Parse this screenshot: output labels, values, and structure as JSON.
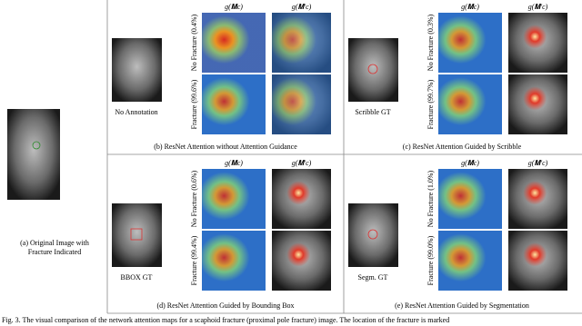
{
  "figure": {
    "original": {
      "caption": [
        "(a) Original Image with",
        "Fracture Indicated"
      ]
    },
    "panels": [
      {
        "caption": "(b) ResNet Attention without Attention Guidance",
        "annotation": "No Annotation",
        "headers": [
          "g(𝐌c)",
          "g(𝐌′c)"
        ],
        "rows": [
          "No Fracture (0.4%)",
          "Fracture (99.6%)"
        ]
      },
      {
        "caption": "(c) ResNet Attention Guided by Scribble",
        "annotation": "Scribble GT",
        "headers": [
          "g(𝐌c)",
          "g(𝐌′c)"
        ],
        "rows": [
          "No Fracture (0.3%)",
          "Fracture (99.7%)"
        ]
      },
      {
        "caption": "(d) ResNet Attention Guided by Bounding Box",
        "annotation": "BBOX GT",
        "headers": [
          "g(𝐌c)",
          "g(𝐌′c)"
        ],
        "rows": [
          "No Fracture (0.6%)",
          "Fracture (99.4%)"
        ]
      },
      {
        "caption": "(e) ResNet Attention Guided by Segmentation",
        "annotation": "Segm. GT",
        "headers": [
          "g(𝐌c)",
          "g(𝐌′c)"
        ],
        "rows": [
          "No Fracture (1.0%)",
          "Fracture (99.0%)"
        ]
      }
    ],
    "caption": "Fig. 3.  The visual comparison of the network attention maps for a scaphoid fracture (proximal pole fracture) image. The location of the fracture is marked"
  }
}
